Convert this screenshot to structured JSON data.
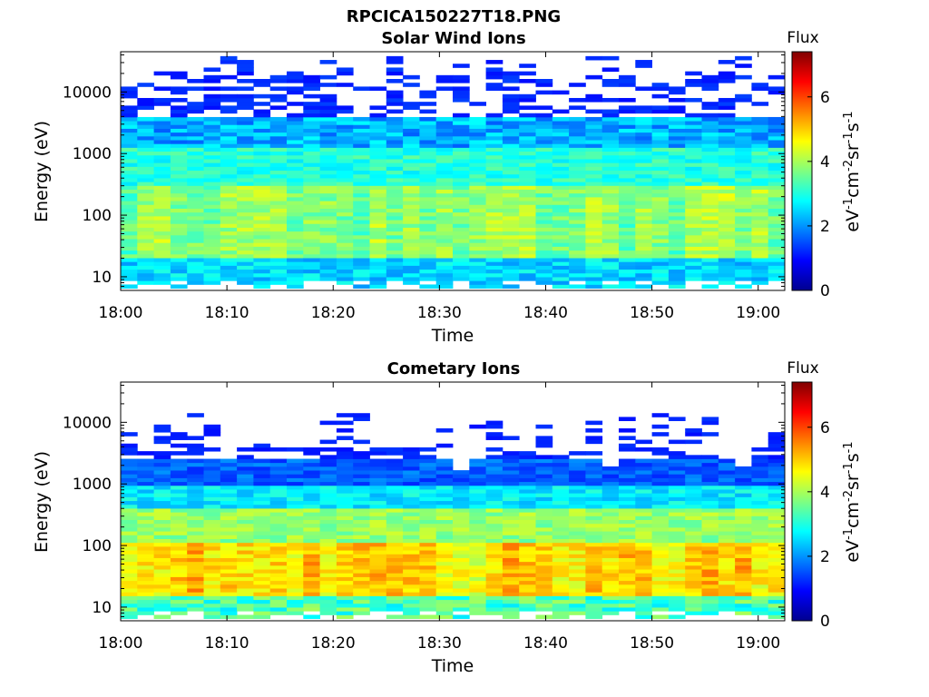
{
  "figure_title": "RPCICA150227T18.PNG",
  "chart_data": [
    {
      "type": "heatmap",
      "title": "Solar Wind Ions",
      "xlabel": "Time",
      "ylabel": "Energy (eV)",
      "yscale": "log",
      "ylim": [
        6,
        45000
      ],
      "xlim": [
        "18:00",
        "19:02.5"
      ],
      "x_ticks": [
        "18:00",
        "18:10",
        "18:20",
        "18:30",
        "18:40",
        "18:50",
        "19:00"
      ],
      "y_ticks": [
        "10",
        "100",
        "1000",
        "10000"
      ],
      "colorbar": {
        "label": "Flux",
        "unit": "eV-1cm-2sr-1s-1",
        "range": [
          0,
          7.4
        ],
        "ticks": [
          "0",
          "2",
          "4",
          "6"
        ],
        "colormap": "jet"
      },
      "profile": {
        "note_levels_are_log10_flux": true,
        "core_energy_eV": [
          20,
          300
        ],
        "core_level": 3.6,
        "low_energy_band_eV": [
          20,
          40
        ],
        "low_energy_band_level": 3.4,
        "high_energy_level": 1.0,
        "top_energy_eV": 40000
      }
    },
    {
      "type": "heatmap",
      "title": "Cometary Ions",
      "xlabel": "Time",
      "ylabel": "Energy (eV)",
      "yscale": "log",
      "ylim": [
        6,
        45000
      ],
      "xlim": [
        "18:00",
        "19:02.5"
      ],
      "x_ticks": [
        "18:00",
        "18:10",
        "18:20",
        "18:30",
        "18:40",
        "18:50",
        "19:00"
      ],
      "y_ticks": [
        "10",
        "100",
        "1000",
        "10000"
      ],
      "colorbar": {
        "label": "Flux",
        "unit": "eV-1cm-2sr-1s-1",
        "range": [
          0,
          7.4
        ],
        "ticks": [
          "0",
          "2",
          "4",
          "6"
        ],
        "colormap": "jet"
      },
      "profile": {
        "note_levels_are_log10_flux": true,
        "peak_energy_eV": [
          20,
          100
        ],
        "peak_level": 4.9,
        "mid_energy_level": 3.2,
        "high_energy_level": 1.0,
        "top_energy_eV": 14000
      }
    }
  ]
}
